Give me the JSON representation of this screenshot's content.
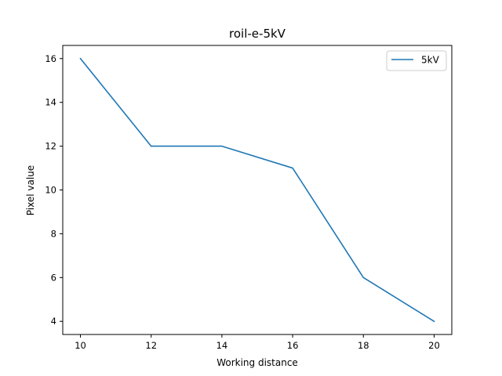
{
  "chart_data": {
    "type": "line",
    "title": "roil-e-5kV",
    "xlabel": "Working distance",
    "ylabel": "Pixel value",
    "x": [
      10,
      12,
      14,
      16,
      18,
      20
    ],
    "series": [
      {
        "name": "5kV",
        "values": [
          16,
          12,
          12,
          11,
          6,
          4
        ],
        "color": "#1f77b4"
      }
    ],
    "xlim": [
      9.5,
      20.5
    ],
    "ylim": [
      3.4,
      16.6
    ],
    "xticks": [
      10,
      12,
      14,
      16,
      18,
      20
    ],
    "yticks": [
      4,
      6,
      8,
      10,
      12,
      14,
      16
    ],
    "grid": false,
    "legend": "top-right"
  }
}
